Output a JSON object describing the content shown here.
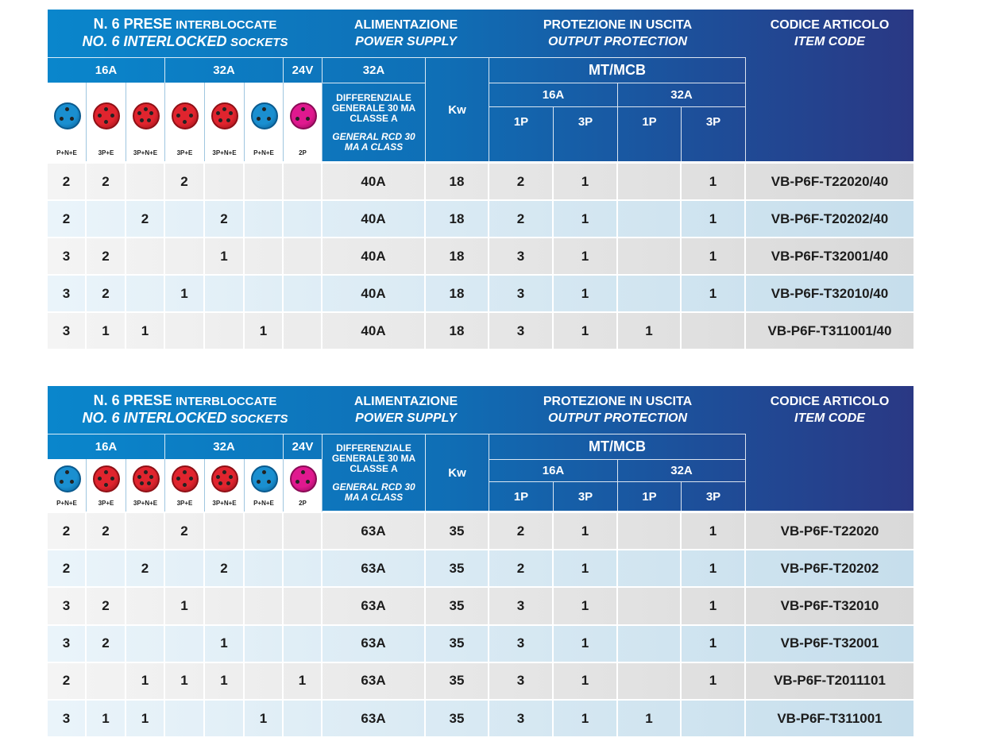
{
  "tables": [
    {
      "header": {
        "title_it_bold": "N. 6 PRESE",
        "title_it": "INTERBLOCCATE",
        "title_en_bold": "NO. 6 INTERLOCKED",
        "title_en": "SOCKETS",
        "supply_it": "ALIMENTAZIONE",
        "supply_en": "POWER SUPPLY",
        "protection_it": "PROTEZIONE IN USCITA",
        "protection_en": "OUTPUT PROTECTION",
        "code_it": "CODICE ARTICOLO",
        "code_en": "ITEM CODE",
        "socket_groups": [
          "16A",
          "32A",
          "24V"
        ],
        "supply_rating": "32A",
        "rcd_it": "DIFFERENZIALE GENERALE 30 MA CLASSE A",
        "rcd_en": "GENERAL RCD 30 MA A CLASS",
        "kw": "Kw",
        "mcb": "MT/MCB",
        "mcb_groups": [
          "16A",
          "32A"
        ],
        "poles": [
          "1P",
          "3P",
          "1P",
          "3P"
        ],
        "sockets": [
          "P+N+E",
          "3P+E",
          "3P+N+E",
          "3P+E",
          "3P+N+E",
          "P+N+E",
          "2P"
        ]
      },
      "rows": [
        [
          2,
          2,
          null,
          2,
          null,
          null,
          null,
          "40A",
          18,
          2,
          1,
          null,
          1,
          "VB-P6F-T22020/40"
        ],
        [
          2,
          null,
          2,
          null,
          2,
          null,
          null,
          "40A",
          18,
          2,
          1,
          null,
          1,
          "VB-P6F-T20202/40"
        ],
        [
          3,
          2,
          null,
          null,
          1,
          null,
          null,
          "40A",
          18,
          3,
          1,
          null,
          1,
          "VB-P6F-T32001/40"
        ],
        [
          3,
          2,
          null,
          1,
          null,
          null,
          null,
          "40A",
          18,
          3,
          1,
          null,
          1,
          "VB-P6F-T32010/40"
        ],
        [
          3,
          1,
          1,
          null,
          null,
          1,
          null,
          "40A",
          18,
          3,
          1,
          1,
          null,
          "VB-P6F-T311001/40"
        ]
      ]
    },
    {
      "header": {
        "title_it_bold": "N. 6 PRESE",
        "title_it": "INTERBLOCCATE",
        "title_en_bold": "NO. 6 INTERLOCKED",
        "title_en": "SOCKETS",
        "supply_it": "ALIMENTAZIONE",
        "supply_en": "POWER SUPPLY",
        "protection_it": "PROTEZIONE IN USCITA",
        "protection_en": "OUTPUT PROTECTION",
        "code_it": "CODICE ARTICOLO",
        "code_en": "ITEM CODE",
        "socket_groups": [
          "16A",
          "32A",
          "24V"
        ],
        "rcd_it": "DIFFERENZIALE GENERALE 30 MA CLASSE A",
        "rcd_en": "GENERAL RCD 30 MA A CLASS",
        "kw": "Kw",
        "mcb": "MT/MCB",
        "mcb_groups": [
          "16A",
          "32A"
        ],
        "poles": [
          "1P",
          "3P",
          "1P",
          "3P"
        ],
        "sockets": [
          "P+N+E",
          "3P+E",
          "3P+N+E",
          "3P+E",
          "3P+N+E",
          "P+N+E",
          "2P"
        ]
      },
      "rows": [
        [
          2,
          2,
          null,
          2,
          null,
          null,
          null,
          "63A",
          35,
          2,
          1,
          null,
          1,
          "VB-P6F-T22020"
        ],
        [
          2,
          null,
          2,
          null,
          2,
          null,
          null,
          "63A",
          35,
          2,
          1,
          null,
          1,
          "VB-P6F-T20202"
        ],
        [
          3,
          2,
          null,
          1,
          null,
          null,
          null,
          "63A",
          35,
          3,
          1,
          null,
          1,
          "VB-P6F-T32010"
        ],
        [
          3,
          2,
          null,
          null,
          1,
          null,
          null,
          "63A",
          35,
          3,
          1,
          null,
          1,
          "VB-P6F-T32001"
        ],
        [
          2,
          null,
          1,
          1,
          1,
          null,
          1,
          "63A",
          35,
          3,
          1,
          null,
          1,
          "VB-P6F-T2011101"
        ],
        [
          3,
          1,
          1,
          null,
          null,
          1,
          null,
          "63A",
          35,
          3,
          1,
          1,
          null,
          "VB-P6F-T311001"
        ]
      ]
    }
  ]
}
